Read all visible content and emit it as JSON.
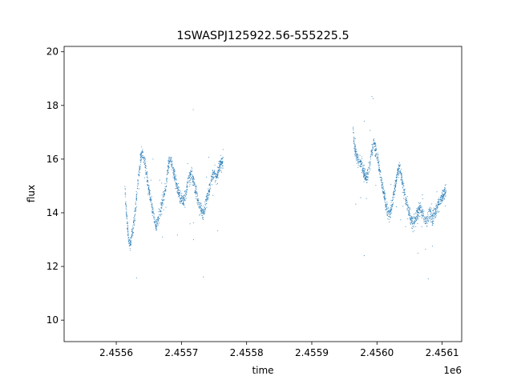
{
  "chart_data": {
    "type": "scatter",
    "title": "1SWASPJ125922.56-555225.5",
    "xlabel": "time",
    "ylabel": "flux",
    "x_offset_label": "1e6",
    "xlim": [
      2.45552,
      2.45613
    ],
    "ylim": [
      9.2,
      20.2
    ],
    "x_ticks": [
      2.4556,
      2.4557,
      2.4558,
      2.4559,
      2.456,
      2.4561
    ],
    "x_tick_labels": [
      "2.4556",
      "2.4557",
      "2.4558",
      "2.4559",
      "2.4560",
      "2.4561"
    ],
    "y_ticks": [
      10,
      12,
      14,
      16,
      18,
      20
    ],
    "y_tick_labels": [
      "10",
      "12",
      "14",
      "16",
      "18",
      "20"
    ],
    "grid": false,
    "marker_color": "#1f77b4",
    "series": [
      {
        "values_x": [
          2.455613,
          2.455615,
          2.455617,
          2.455619,
          2.455621,
          2.455623,
          2.455625,
          2.455627,
          2.455629,
          2.455631,
          2.455634,
          2.455637,
          2.45564,
          2.455643,
          2.455646,
          2.455649,
          2.455652,
          2.455655,
          2.455658,
          2.455661,
          2.455664,
          2.455667,
          2.45567,
          2.455673,
          2.455676,
          2.455679,
          2.455682,
          2.455685,
          2.455688,
          2.455691,
          2.455694,
          2.455697,
          2.4557,
          2.455703,
          2.455706,
          2.455709,
          2.455712,
          2.455715,
          2.455718,
          2.455721,
          2.455724,
          2.455727,
          2.45573,
          2.455733,
          2.455736,
          2.455739,
          2.455742,
          2.455745,
          2.455748,
          2.455751,
          2.455754,
          2.455757,
          2.45576,
          2.455762,
          2.455764
        ],
        "values_y": [
          15.2,
          14.2,
          13.6,
          13.0,
          12.8,
          13.0,
          13.3,
          13.6,
          14.0,
          14.6,
          15.3,
          15.9,
          16.3,
          16.0,
          15.5,
          15.0,
          14.6,
          14.2,
          13.8,
          13.5,
          13.7,
          14.0,
          14.3,
          14.6,
          15.0,
          15.6,
          16.0,
          15.8,
          15.5,
          15.2,
          14.9,
          14.7,
          14.5,
          14.4,
          14.6,
          15.0,
          15.3,
          15.5,
          15.2,
          14.9,
          14.6,
          14.3,
          14.1,
          14.0,
          14.2,
          14.5,
          14.8,
          15.1,
          15.4,
          15.5,
          15.3,
          15.6,
          15.8,
          15.9,
          15.8
        ]
      },
      {
        "values_x": [
          2.455963,
          2.455965,
          2.455968,
          2.455971,
          2.455974,
          2.455977,
          2.45598,
          2.455983,
          2.455986,
          2.455989,
          2.455992,
          2.455995,
          2.455998,
          2.456001,
          2.456004,
          2.456007,
          2.45601,
          2.456013,
          2.456016,
          2.456019,
          2.456022,
          2.456025,
          2.456028,
          2.456031,
          2.456034,
          2.456037,
          2.45604,
          2.456043,
          2.456046,
          2.456049,
          2.456052,
          2.456055,
          2.456058,
          2.456061,
          2.456064,
          2.456067,
          2.45607,
          2.456073,
          2.456076,
          2.456079,
          2.456082,
          2.456085,
          2.456088,
          2.456091,
          2.456094,
          2.456097,
          2.4561,
          2.456103,
          2.456106
        ],
        "values_y": [
          17.3,
          16.6,
          16.2,
          16.0,
          15.9,
          15.7,
          15.5,
          15.3,
          15.4,
          15.8,
          16.3,
          16.6,
          16.4,
          16.0,
          15.6,
          15.2,
          14.8,
          14.4,
          14.1,
          13.9,
          14.2,
          14.6,
          15.0,
          15.4,
          15.7,
          15.4,
          15.0,
          14.6,
          14.3,
          14.0,
          13.8,
          13.6,
          13.7,
          13.9,
          14.1,
          14.2,
          14.0,
          13.8,
          13.7,
          13.9,
          14.0,
          13.8,
          13.9,
          14.1,
          14.3,
          14.5,
          14.6,
          14.7,
          14.8
        ]
      }
    ]
  }
}
